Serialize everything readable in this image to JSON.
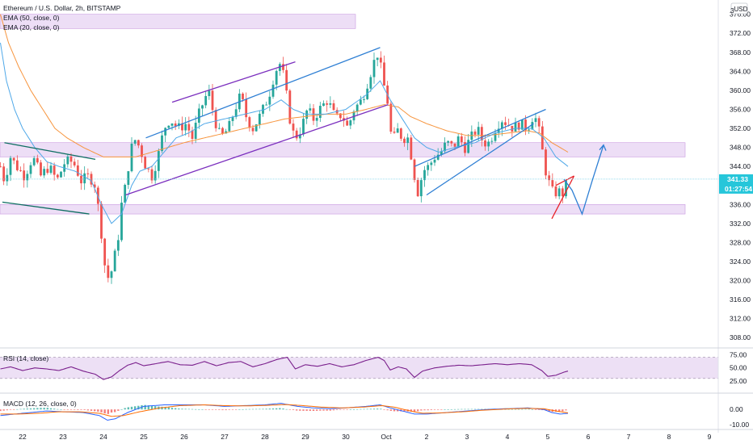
{
  "header": {
    "title": "Ethereum / U.S. Dollar, 2h, BITSTAMP",
    "ema50_label": "EMA (50, close, 0)",
    "ema20_label": "EMA (20, close, 0)",
    "currency_button": "USD",
    "top_partial_price": "3"
  },
  "price_badge": {
    "price": "341.33",
    "countdown": "01:27:54"
  },
  "colors": {
    "up": "#26a69a",
    "down": "#ef5350",
    "ema50": "#f7953e",
    "ema20": "#4fa8e8",
    "zone_fill": "#e7d3f3",
    "zone_stroke": "#c99ae0",
    "purple": "#7b2fbe",
    "blue": "#2e7fd4",
    "teal": "#0e6e62",
    "red_trend": "#e8232a",
    "rsi_line": "#7a1f8c",
    "rsi_band": "#ede0f5",
    "macd_line": "#2962ff",
    "signal_line": "#ff6d00"
  },
  "chart_data": [
    {
      "type": "candlestick",
      "title": "Ethereum / U.S. Dollar, 2h, BITSTAMP",
      "xlabel": "",
      "ylabel": "",
      "ylim": [
        306,
        379
      ],
      "y_ticks": [
        "376.00",
        "372.00",
        "368.00",
        "364.00",
        "360.00",
        "356.00",
        "352.00",
        "348.00",
        "344.00",
        "340.00",
        "336.00",
        "332.00",
        "328.00",
        "324.00",
        "320.00",
        "316.00",
        "312.00",
        "308.00"
      ],
      "x_ticks": [
        "22",
        "23",
        "24",
        "25",
        "26",
        "27",
        "28",
        "29",
        "30",
        "Oct",
        "2",
        "3",
        "4",
        "5",
        "6",
        "7",
        "8",
        "9"
      ],
      "x_range_days": [
        21.45,
        9.85
      ],
      "anchors": [
        [
          21.45,
          344
        ],
        [
          21.55,
          341
        ],
        [
          21.7,
          346
        ],
        [
          21.85,
          344
        ],
        [
          22.05,
          342
        ],
        [
          22.25,
          346
        ],
        [
          22.45,
          342
        ],
        [
          22.65,
          344
        ],
        [
          22.85,
          341
        ],
        [
          23.05,
          345
        ],
        [
          23.25,
          345
        ],
        [
          23.45,
          341
        ],
        [
          23.65,
          342
        ],
        [
          23.8,
          340
        ],
        [
          23.95,
          330
        ],
        [
          24.05,
          322
        ],
        [
          24.15,
          320
        ],
        [
          24.25,
          324
        ],
        [
          24.35,
          328
        ],
        [
          24.45,
          336
        ],
        [
          24.55,
          340
        ],
        [
          24.65,
          346
        ],
        [
          24.75,
          350
        ],
        [
          24.9,
          348
        ],
        [
          25.05,
          344
        ],
        [
          25.2,
          342
        ],
        [
          25.35,
          346
        ],
        [
          25.5,
          352
        ],
        [
          25.65,
          354
        ],
        [
          25.85,
          352
        ],
        [
          26.05,
          353
        ],
        [
          26.2,
          350
        ],
        [
          26.4,
          356
        ],
        [
          26.6,
          360
        ],
        [
          26.75,
          354
        ],
        [
          26.9,
          350
        ],
        [
          27.1,
          352
        ],
        [
          27.25,
          356
        ],
        [
          27.4,
          359
        ],
        [
          27.55,
          354
        ],
        [
          27.7,
          352
        ],
        [
          27.9,
          355
        ],
        [
          28.1,
          359
        ],
        [
          28.25,
          364
        ],
        [
          28.4,
          366
        ],
        [
          28.55,
          358
        ],
        [
          28.65,
          352
        ],
        [
          28.75,
          350
        ],
        [
          28.9,
          352
        ],
        [
          29.05,
          356
        ],
        [
          29.2,
          354
        ],
        [
          29.35,
          356
        ],
        [
          29.55,
          358
        ],
        [
          29.75,
          354
        ],
        [
          29.9,
          355
        ],
        [
          30.05,
          352
        ],
        [
          30.2,
          356
        ],
        [
          30.4,
          358
        ],
        [
          30.55,
          362
        ],
        [
          30.7,
          366
        ],
        [
          30.8,
          368
        ],
        [
          30.92,
          362
        ],
        [
          31.05,
          357
        ],
        [
          31.15,
          348
        ],
        [
          31.25,
          352
        ],
        [
          31.4,
          350
        ],
        [
          31.55,
          350
        ],
        [
          31.7,
          342
        ],
        [
          31.8,
          338
        ],
        [
          31.9,
          343
        ],
        [
          32.05,
          344
        ],
        [
          32.2,
          346
        ],
        [
          32.35,
          347
        ],
        [
          32.5,
          349
        ],
        [
          32.65,
          348
        ],
        [
          32.8,
          350
        ],
        [
          32.95,
          348
        ],
        [
          33.1,
          350
        ],
        [
          33.25,
          352
        ],
        [
          33.4,
          349
        ],
        [
          33.55,
          349
        ],
        [
          33.7,
          352
        ],
        [
          33.85,
          354
        ],
        [
          34.0,
          353
        ],
        [
          34.15,
          352
        ],
        [
          34.3,
          353
        ],
        [
          34.5,
          352
        ],
        [
          34.65,
          355
        ],
        [
          34.75,
          353
        ],
        [
          34.85,
          348
        ],
        [
          34.95,
          343
        ],
        [
          35.05,
          340
        ],
        [
          35.15,
          338
        ],
        [
          35.25,
          339
        ],
        [
          35.35,
          338
        ],
        [
          35.45,
          340
        ],
        [
          35.5,
          341.33
        ]
      ],
      "ema50_anchors": [
        [
          21.45,
          376
        ],
        [
          21.65,
          370
        ],
        [
          21.9,
          365
        ],
        [
          22.2,
          360
        ],
        [
          22.5,
          356
        ],
        [
          22.8,
          352
        ],
        [
          23.1,
          350
        ],
        [
          23.5,
          348
        ],
        [
          24.0,
          346
        ],
        [
          24.4,
          346
        ],
        [
          24.8,
          346
        ],
        [
          25.2,
          347
        ],
        [
          25.6,
          348
        ],
        [
          26.0,
          349
        ],
        [
          26.5,
          350
        ],
        [
          27.0,
          351
        ],
        [
          27.5,
          352
        ],
        [
          28.0,
          353
        ],
        [
          28.5,
          354
        ],
        [
          29.0,
          354.5
        ],
        [
          29.5,
          355
        ],
        [
          30.0,
          355
        ],
        [
          30.5,
          356
        ],
        [
          30.95,
          357
        ],
        [
          31.3,
          356.5
        ],
        [
          31.6,
          354.5
        ],
        [
          32.0,
          353
        ],
        [
          32.5,
          351.5
        ],
        [
          33.0,
          350.5
        ],
        [
          33.5,
          350.5
        ],
        [
          34.0,
          351
        ],
        [
          34.5,
          351.5
        ],
        [
          34.8,
          351
        ],
        [
          35.1,
          349
        ],
        [
          35.5,
          347
        ]
      ],
      "ema20_anchors": [
        [
          21.45,
          370
        ],
        [
          21.6,
          362
        ],
        [
          21.8,
          356
        ],
        [
          22.0,
          352
        ],
        [
          22.3,
          348
        ],
        [
          22.6,
          345
        ],
        [
          22.9,
          344
        ],
        [
          23.3,
          343
        ],
        [
          23.7,
          341
        ],
        [
          23.95,
          336
        ],
        [
          24.2,
          332
        ],
        [
          24.45,
          334
        ],
        [
          24.7,
          340
        ],
        [
          24.9,
          343
        ],
        [
          25.2,
          344
        ],
        [
          25.5,
          347
        ],
        [
          25.8,
          350
        ],
        [
          26.1,
          351
        ],
        [
          26.5,
          353
        ],
        [
          27.0,
          354
        ],
        [
          27.5,
          355
        ],
        [
          28.0,
          356
        ],
        [
          28.4,
          358
        ],
        [
          28.7,
          356
        ],
        [
          29.0,
          355
        ],
        [
          29.5,
          355
        ],
        [
          30.0,
          356
        ],
        [
          30.5,
          359
        ],
        [
          30.85,
          362
        ],
        [
          31.1,
          358
        ],
        [
          31.4,
          354
        ],
        [
          31.7,
          350
        ],
        [
          32.0,
          348
        ],
        [
          32.3,
          347
        ],
        [
          32.7,
          348
        ],
        [
          33.2,
          349
        ],
        [
          33.7,
          351
        ],
        [
          34.2,
          352
        ],
        [
          34.6,
          352
        ],
        [
          34.9,
          350
        ],
        [
          35.2,
          346
        ],
        [
          35.5,
          344
        ]
      ],
      "zones": [
        [
          376,
          373
        ],
        [
          349,
          346
        ],
        [
          336,
          334
        ]
      ],
      "trendlines": [
        {
          "color": "purple",
          "points": [
            [
              24.55,
              338
            ],
            [
              31.05,
              357
            ]
          ]
        },
        {
          "color": "purple",
          "points": [
            [
              25.7,
              357.5
            ],
            [
              28.75,
              366
            ]
          ]
        },
        {
          "color": "blue",
          "points": [
            [
              25.05,
              350
            ],
            [
              30.85,
              369
            ]
          ]
        },
        {
          "color": "blue",
          "points": [
            [
              31.7,
              344
            ],
            [
              34.95,
              356
            ]
          ]
        },
        {
          "color": "blue",
          "points": [
            [
              32.0,
              338
            ],
            [
              34.65,
              353
            ]
          ]
        },
        {
          "color": "teal",
          "points": [
            [
              21.55,
              349
            ],
            [
              23.8,
              345.5
            ]
          ]
        },
        {
          "color": "teal",
          "points": [
            [
              21.5,
              336.5
            ],
            [
              23.65,
              334
            ]
          ]
        },
        {
          "color": "red_trend",
          "points": [
            [
              35.2,
              340
            ],
            [
              35.65,
              342
            ]
          ]
        },
        {
          "color": "red_trend",
          "points": [
            [
              35.1,
              333
            ],
            [
              35.65,
              342
            ]
          ]
        }
      ],
      "projection": [
        [
          35.4,
          341.33
        ],
        [
          35.6,
          339
        ],
        [
          35.85,
          334
        ],
        [
          36.1,
          341
        ],
        [
          36.38,
          348.5
        ]
      ]
    },
    {
      "type": "line",
      "title": "RSI (14, close)",
      "ylim": [
        10,
        80
      ],
      "y_ticks": [
        "75.00",
        "50.00",
        "25.00"
      ],
      "band": [
        70,
        30
      ],
      "anchors": [
        [
          21.45,
          48
        ],
        [
          21.7,
          52
        ],
        [
          22.0,
          45
        ],
        [
          22.3,
          50
        ],
        [
          22.6,
          48
        ],
        [
          22.9,
          45
        ],
        [
          23.2,
          52
        ],
        [
          23.5,
          44
        ],
        [
          23.8,
          38
        ],
        [
          24.0,
          28
        ],
        [
          24.2,
          33
        ],
        [
          24.4,
          45
        ],
        [
          24.6,
          55
        ],
        [
          24.8,
          60
        ],
        [
          25.0,
          54
        ],
        [
          25.3,
          58
        ],
        [
          25.6,
          62
        ],
        [
          25.9,
          56
        ],
        [
          26.2,
          55
        ],
        [
          26.5,
          62
        ],
        [
          26.8,
          54
        ],
        [
          27.1,
          60
        ],
        [
          27.4,
          62
        ],
        [
          27.7,
          52
        ],
        [
          28.0,
          58
        ],
        [
          28.3,
          66
        ],
        [
          28.55,
          70
        ],
        [
          28.75,
          48
        ],
        [
          29.0,
          56
        ],
        [
          29.3,
          53
        ],
        [
          29.6,
          58
        ],
        [
          29.9,
          52
        ],
        [
          30.2,
          56
        ],
        [
          30.5,
          64
        ],
        [
          30.8,
          70
        ],
        [
          30.95,
          64
        ],
        [
          31.1,
          46
        ],
        [
          31.3,
          52
        ],
        [
          31.5,
          48
        ],
        [
          31.7,
          32
        ],
        [
          31.9,
          44
        ],
        [
          32.2,
          50
        ],
        [
          32.5,
          53
        ],
        [
          32.8,
          55
        ],
        [
          33.1,
          54
        ],
        [
          33.4,
          56
        ],
        [
          33.7,
          58
        ],
        [
          34.0,
          56
        ],
        [
          34.3,
          58
        ],
        [
          34.6,
          56
        ],
        [
          34.85,
          45
        ],
        [
          35.0,
          34
        ],
        [
          35.2,
          36
        ],
        [
          35.4,
          42
        ],
        [
          35.5,
          44
        ]
      ]
    },
    {
      "type": "histogram",
      "title": "MACD (12, 26, close, 0)",
      "ylim": [
        -12,
        8
      ],
      "y_ticks": [
        "0.00",
        "-10.00"
      ],
      "macd_anchors": [
        [
          21.45,
          -4
        ],
        [
          21.8,
          -3
        ],
        [
          22.2,
          -2
        ],
        [
          22.6,
          -1
        ],
        [
          23.0,
          -1.5
        ],
        [
          23.5,
          -2
        ],
        [
          23.9,
          -4
        ],
        [
          24.1,
          -7
        ],
        [
          24.3,
          -6
        ],
        [
          24.6,
          -2
        ],
        [
          25.0,
          2
        ],
        [
          25.5,
          3
        ],
        [
          26.0,
          3
        ],
        [
          26.5,
          3
        ],
        [
          27.0,
          2
        ],
        [
          27.5,
          2.5
        ],
        [
          28.0,
          3
        ],
        [
          28.4,
          4
        ],
        [
          28.8,
          2
        ],
        [
          29.2,
          1
        ],
        [
          29.6,
          0.5
        ],
        [
          30.0,
          1
        ],
        [
          30.5,
          2
        ],
        [
          30.85,
          3
        ],
        [
          31.1,
          1
        ],
        [
          31.4,
          -1
        ],
        [
          31.7,
          -3
        ],
        [
          32.0,
          -3
        ],
        [
          32.5,
          -2
        ],
        [
          33.0,
          -1
        ],
        [
          33.5,
          0
        ],
        [
          34.0,
          0.5
        ],
        [
          34.5,
          1
        ],
        [
          34.9,
          0
        ],
        [
          35.1,
          -2
        ],
        [
          35.3,
          -3
        ],
        [
          35.5,
          -2.5
        ]
      ],
      "signal_anchors": [
        [
          21.45,
          -3
        ],
        [
          21.9,
          -3
        ],
        [
          22.4,
          -2.5
        ],
        [
          22.9,
          -1.5
        ],
        [
          23.4,
          -1.5
        ],
        [
          23.9,
          -2.5
        ],
        [
          24.2,
          -4.5
        ],
        [
          24.5,
          -4
        ],
        [
          24.9,
          -1.5
        ],
        [
          25.4,
          1
        ],
        [
          25.9,
          2.5
        ],
        [
          26.5,
          3
        ],
        [
          27.0,
          2.5
        ],
        [
          27.5,
          2.3
        ],
        [
          28.0,
          2.6
        ],
        [
          28.5,
          3.2
        ],
        [
          28.9,
          2.6
        ],
        [
          29.4,
          1.5
        ],
        [
          29.9,
          1
        ],
        [
          30.4,
          1.5
        ],
        [
          30.9,
          2.5
        ],
        [
          31.2,
          1.5
        ],
        [
          31.6,
          -1
        ],
        [
          31.9,
          -2.5
        ],
        [
          32.4,
          -2.2
        ],
        [
          32.9,
          -1.5
        ],
        [
          33.4,
          -0.5
        ],
        [
          33.9,
          0.2
        ],
        [
          34.4,
          0.7
        ],
        [
          34.9,
          0.5
        ],
        [
          35.2,
          -1
        ],
        [
          35.5,
          -2.2
        ]
      ]
    }
  ]
}
